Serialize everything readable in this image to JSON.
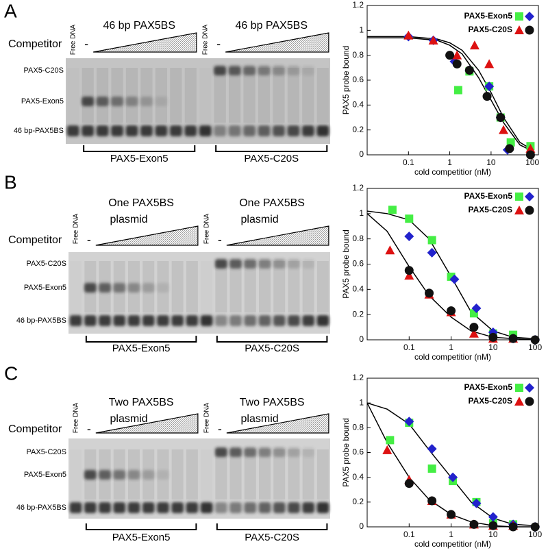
{
  "panels": [
    {
      "letter": "A",
      "competitor": "Competitor",
      "gel": {
        "free_dna": [
          "Free DNA",
          "Free DNA"
        ],
        "minus": [
          "-",
          "-"
        ],
        "titles": [
          [
            "46 bp PAX5BS"
          ],
          [
            "46 bp PAX5BS"
          ]
        ],
        "bands": [
          "PAX5-C20S",
          "PAX5-Exon5",
          "46 bp-PAX5BS"
        ],
        "groups": [
          "PAX5-Exon5",
          "PAX5-C20S"
        ]
      }
    },
    {
      "letter": "B",
      "competitor": "Competitor",
      "gel": {
        "free_dna": [
          "Free DNA",
          "Free DNA"
        ],
        "minus": [
          "-",
          "-"
        ],
        "titles": [
          [
            "One PAX5BS",
            "plasmid"
          ],
          [
            "One PAX5BS",
            "plasmid"
          ]
        ],
        "bands": [
          "PAX5-C20S",
          "PAX5-Exon5",
          "46 bp-PAX5BS"
        ],
        "groups": [
          "PAX5-Exon5",
          "PAX5-C20S"
        ]
      }
    },
    {
      "letter": "C",
      "competitor": "Competitor",
      "gel": {
        "free_dna": [
          "Free DNA",
          "Free DNA"
        ],
        "minus": [
          "-",
          "-"
        ],
        "titles": [
          [
            "Two PAX5BS",
            "plasmid"
          ],
          [
            "Two PAX5BS",
            "plasmid"
          ]
        ],
        "bands": [
          "PAX5-C20S",
          "PAX5-Exon5",
          "46 bp-PAX5BS"
        ],
        "groups": [
          "PAX5-Exon5",
          "PAX5-C20S"
        ]
      }
    }
  ],
  "chart_data": [
    {
      "type": "scatter",
      "ylabel": "PAX5 probe bound",
      "xlabel": "cold competitior (nM)",
      "xscale": "log",
      "xlim": [
        0.01,
        140
      ],
      "ylim": [
        0,
        1.2
      ],
      "xticks": [
        0.1,
        1,
        10,
        100
      ],
      "yticks": [
        0,
        0.2,
        0.4,
        0.6,
        0.8,
        1,
        1.2
      ],
      "legend": "upper right",
      "series": [
        {
          "name": "PAX5-Exon5",
          "color": "#44ee44",
          "marker": "square",
          "x": [
            1.6,
            3,
            9,
            17,
            30,
            90
          ],
          "values": [
            0.52,
            0.67,
            0.55,
            0.3,
            0.1,
            0.07
          ]
        },
        {
          "name": "PAX5-Exon5",
          "color": "#2222cc",
          "marker": "diamond",
          "x": [
            0.1,
            0.4,
            1.3,
            3,
            9,
            17,
            25
          ],
          "values": [
            0.95,
            0.92,
            0.75,
            0.68,
            0.55,
            0.3,
            0.04
          ]
        },
        {
          "name": "PAX5-C20S",
          "color": "#dd1111",
          "marker": "triangle",
          "x": [
            0.1,
            0.4,
            1.5,
            4,
            9,
            20,
            90
          ],
          "values": [
            0.96,
            0.92,
            0.8,
            0.88,
            0.73,
            0.2,
            0.05
          ]
        },
        {
          "name": "PAX5-C20S",
          "color": "#111111",
          "marker": "circle",
          "x": [
            1,
            1.5,
            3,
            8,
            17,
            28,
            90
          ],
          "values": [
            0.8,
            0.73,
            0.68,
            0.47,
            0.3,
            0.05,
            0
          ]
        }
      ],
      "fits": [
        {
          "color": "#000000",
          "x": [
            0.01,
            0.1,
            0.5,
            1,
            2,
            5,
            10,
            20,
            50,
            100
          ],
          "values": [
            0.95,
            0.95,
            0.93,
            0.9,
            0.84,
            0.68,
            0.5,
            0.3,
            0.1,
            0.04
          ]
        },
        {
          "color": "#000000",
          "x": [
            0.01,
            0.1,
            0.5,
            1,
            2,
            5,
            10,
            20,
            50,
            100
          ],
          "values": [
            0.94,
            0.94,
            0.92,
            0.88,
            0.81,
            0.62,
            0.44,
            0.26,
            0.08,
            0.03
          ]
        }
      ]
    },
    {
      "type": "scatter",
      "ylabel": "PAX5 probe bound",
      "xlabel": "cold competitior (nM)",
      "xscale": "log",
      "xlim": [
        0.01,
        120
      ],
      "ylim": [
        0,
        1.2
      ],
      "xticks": [
        0.1,
        1,
        10,
        100
      ],
      "yticks": [
        0,
        0.2,
        0.4,
        0.6,
        0.8,
        1,
        1.2
      ],
      "legend": "upper right",
      "series": [
        {
          "name": "PAX5-Exon5",
          "color": "#44ee44",
          "marker": "square",
          "x": [
            0.04,
            0.1,
            0.35,
            1,
            3.5,
            10,
            30
          ],
          "values": [
            1.03,
            0.96,
            0.79,
            0.5,
            0.21,
            0.05,
            0.04
          ]
        },
        {
          "name": "PAX5-Exon5",
          "color": "#2222cc",
          "marker": "diamond",
          "x": [
            0.1,
            0.35,
            1.2,
            4,
            10,
            30,
            100
          ],
          "values": [
            0.82,
            0.69,
            0.48,
            0.25,
            0.06,
            0.01,
            0
          ]
        },
        {
          "name": "PAX5-C20S",
          "color": "#dd1111",
          "marker": "triangle",
          "x": [
            0.035,
            0.1,
            0.3,
            1,
            3.5,
            10,
            30
          ],
          "values": [
            0.71,
            0.51,
            0.36,
            0.22,
            0.05,
            0.01,
            0.01
          ]
        },
        {
          "name": "PAX5-C20S",
          "color": "#111111",
          "marker": "circle",
          "x": [
            0.1,
            0.3,
            1,
            3.5,
            10,
            30,
            100
          ],
          "values": [
            0.55,
            0.37,
            0.23,
            0.1,
            0.02,
            0.01,
            0
          ]
        }
      ],
      "fits": [
        {
          "color": "#000000",
          "x": [
            0.01,
            0.03,
            0.1,
            0.3,
            1,
            3,
            10,
            30,
            100
          ],
          "values": [
            1.02,
            1,
            0.95,
            0.8,
            0.5,
            0.22,
            0.07,
            0.02,
            0.01
          ]
        },
        {
          "color": "#000000",
          "x": [
            0.01,
            0.03,
            0.1,
            0.3,
            1,
            3,
            10,
            30,
            100
          ],
          "values": [
            1,
            0.86,
            0.58,
            0.35,
            0.18,
            0.07,
            0.02,
            0.01,
            0
          ]
        }
      ]
    },
    {
      "type": "scatter",
      "ylabel": "PAX5 probe bound",
      "xlabel": "cold competitior (nM)",
      "xscale": "log",
      "xlim": [
        0.01,
        120
      ],
      "ylim": [
        0,
        1.2
      ],
      "xticks": [
        0.1,
        1,
        10,
        100
      ],
      "yticks": [
        0,
        0.2,
        0.4,
        0.6,
        0.8,
        1,
        1.2
      ],
      "legend": "upper right",
      "series": [
        {
          "name": "PAX5-Exon5",
          "color": "#44ee44",
          "marker": "square",
          "x": [
            0.035,
            0.1,
            0.35,
            1.1,
            4,
            10,
            30
          ],
          "values": [
            0.7,
            0.84,
            0.47,
            0.37,
            0.2,
            0.03,
            0.02
          ]
        },
        {
          "name": "PAX5-Exon5",
          "color": "#2222cc",
          "marker": "diamond",
          "x": [
            0.1,
            0.35,
            1.1,
            4,
            10,
            30,
            100
          ],
          "values": [
            0.85,
            0.63,
            0.4,
            0.19,
            0.08,
            0.02,
            0
          ]
        },
        {
          "name": "PAX5-C20S",
          "color": "#dd1111",
          "marker": "triangle",
          "x": [
            0.03,
            0.1,
            0.35,
            1,
            3.5,
            10,
            30
          ],
          "values": [
            0.62,
            0.38,
            0.21,
            0.1,
            0.02,
            0.01,
            0.01
          ]
        },
        {
          "name": "PAX5-C20S",
          "color": "#111111",
          "marker": "circle",
          "x": [
            0.1,
            0.35,
            1,
            3.5,
            10,
            30,
            100
          ],
          "values": [
            0.35,
            0.21,
            0.1,
            0.02,
            0.01,
            0,
            0
          ]
        }
      ],
      "fits": [
        {
          "color": "#000000",
          "x": [
            0.01,
            0.03,
            0.1,
            0.3,
            1,
            3,
            10,
            30,
            100
          ],
          "values": [
            1,
            0.95,
            0.83,
            0.62,
            0.4,
            0.2,
            0.07,
            0.02,
            0.01
          ]
        },
        {
          "color": "#000000",
          "x": [
            0.01,
            0.03,
            0.1,
            0.3,
            1,
            3,
            10,
            30,
            100
          ],
          "values": [
            1,
            0.68,
            0.4,
            0.22,
            0.1,
            0.04,
            0.01,
            0,
            0
          ]
        }
      ]
    }
  ]
}
